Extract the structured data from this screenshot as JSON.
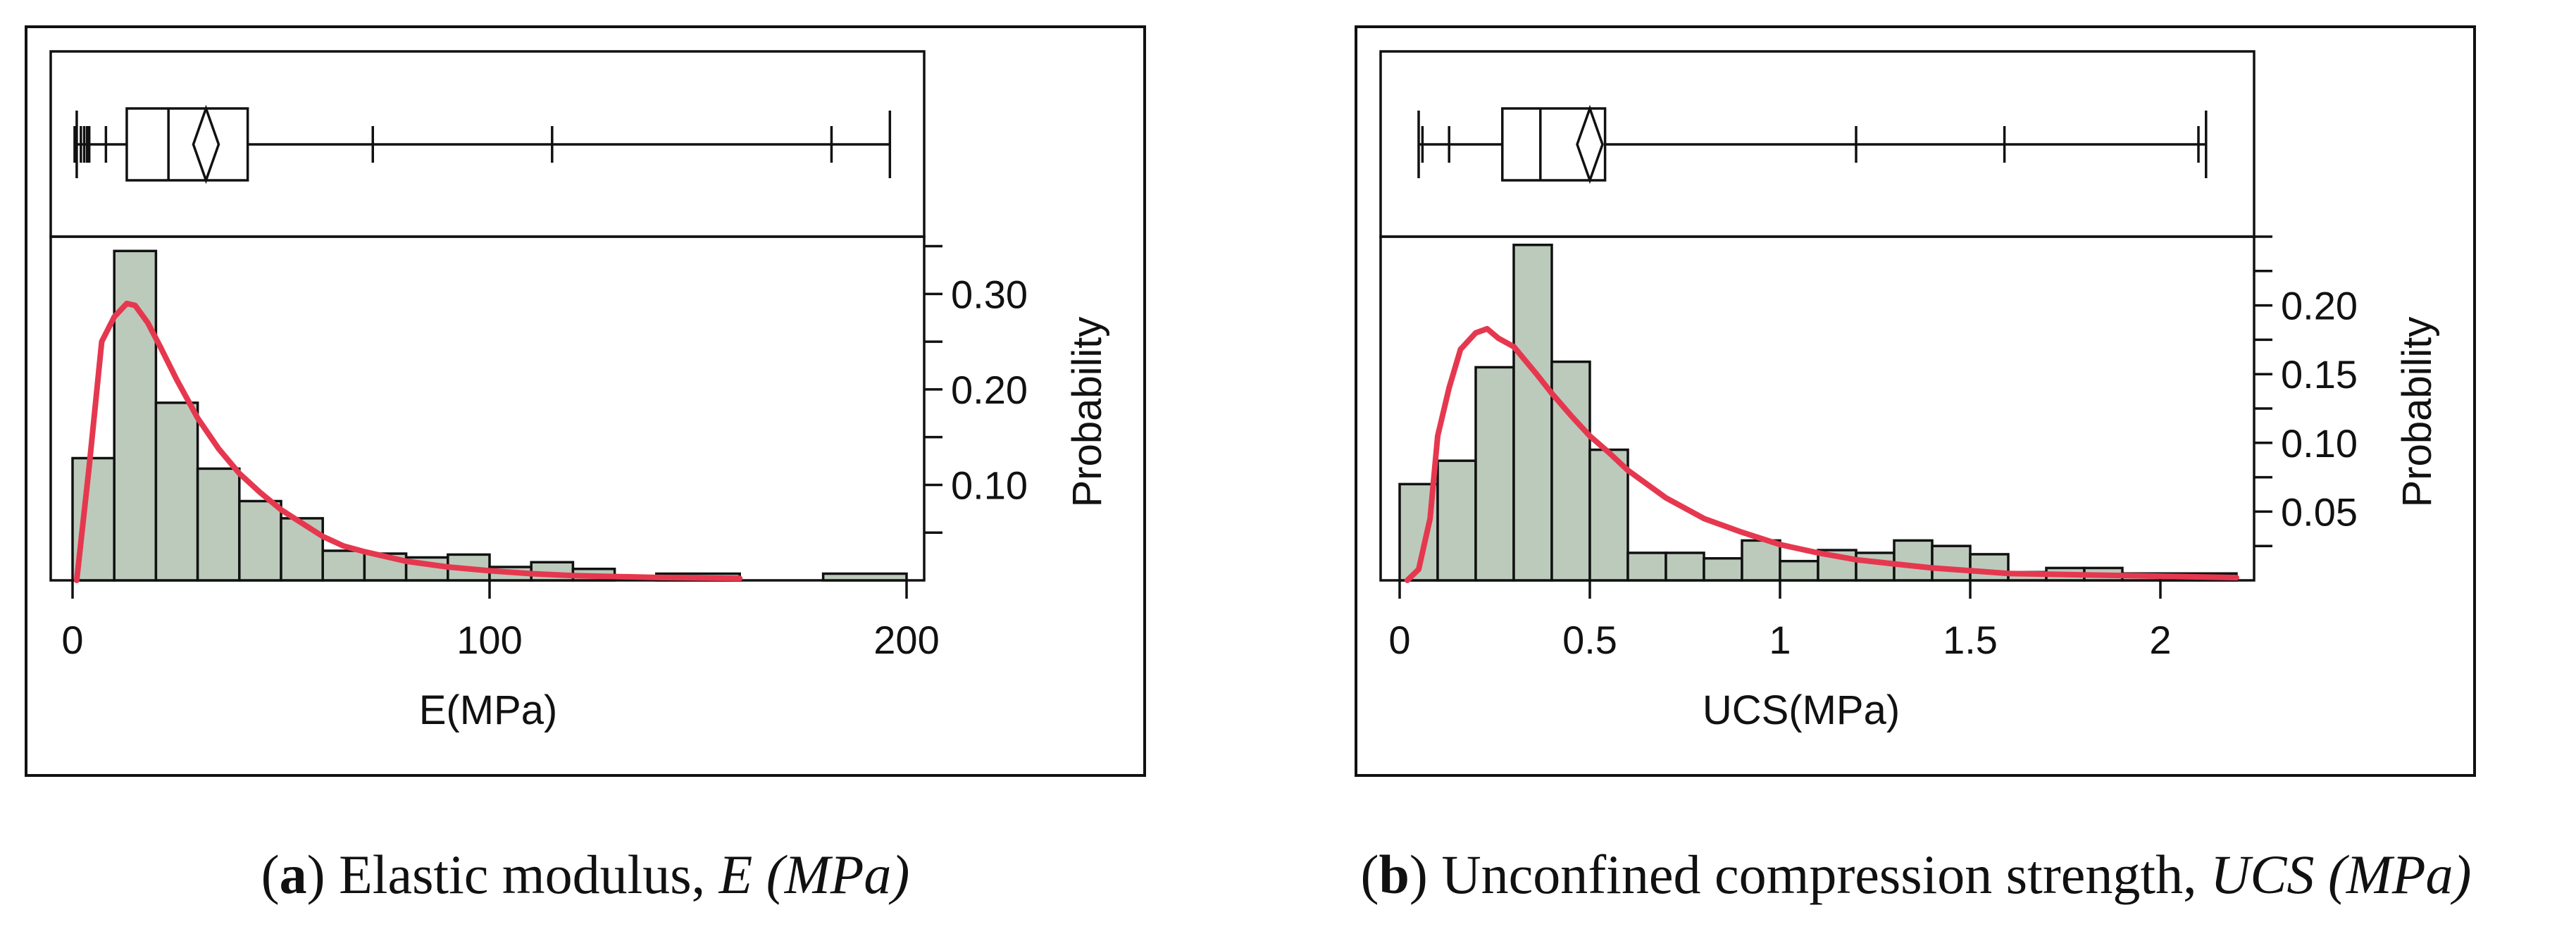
{
  "chart_data": [
    {
      "id": "a",
      "type": "histogram",
      "xlabel": "E(MPa)",
      "ylabel": "Probability",
      "xlim": [
        0,
        200
      ],
      "xticks": [
        0,
        100,
        200
      ],
      "xtick_labels": [
        "0",
        "100",
        "200"
      ],
      "ylim": [
        0,
        0.36
      ],
      "yticks": [
        0.05,
        0.1,
        0.15,
        0.2,
        0.25,
        0.3,
        0.35
      ],
      "ytick_labels": [
        {
          "value": 0.1,
          "label": "0.10"
        },
        {
          "value": 0.2,
          "label": "0.20"
        },
        {
          "value": 0.3,
          "label": "0.30"
        }
      ],
      "bins": [
        {
          "x0": 0,
          "x1": 10,
          "p": 0.128
        },
        {
          "x0": 10,
          "x1": 20,
          "p": 0.345
        },
        {
          "x0": 20,
          "x1": 30,
          "p": 0.186
        },
        {
          "x0": 30,
          "x1": 40,
          "p": 0.117
        },
        {
          "x0": 40,
          "x1": 50,
          "p": 0.083
        },
        {
          "x0": 50,
          "x1": 60,
          "p": 0.065
        },
        {
          "x0": 60,
          "x1": 70,
          "p": 0.031
        },
        {
          "x0": 70,
          "x1": 80,
          "p": 0.028
        },
        {
          "x0": 80,
          "x1": 90,
          "p": 0.024
        },
        {
          "x0": 90,
          "x1": 100,
          "p": 0.027
        },
        {
          "x0": 100,
          "x1": 110,
          "p": 0.014
        },
        {
          "x0": 110,
          "x1": 120,
          "p": 0.019
        },
        {
          "x0": 120,
          "x1": 130,
          "p": 0.012
        },
        {
          "x0": 140,
          "x1": 160,
          "p": 0.007
        },
        {
          "x0": 180,
          "x1": 200,
          "p": 0.007
        }
      ],
      "fit_curve": [
        [
          1,
          0.0
        ],
        [
          4,
          0.12
        ],
        [
          7,
          0.25
        ],
        [
          10,
          0.276
        ],
        [
          13,
          0.29
        ],
        [
          15,
          0.288
        ],
        [
          18,
          0.27
        ],
        [
          21,
          0.245
        ],
        [
          25,
          0.21
        ],
        [
          30,
          0.17
        ],
        [
          35,
          0.138
        ],
        [
          40,
          0.112
        ],
        [
          45,
          0.092
        ],
        [
          50,
          0.074
        ],
        [
          55,
          0.06
        ],
        [
          60,
          0.046
        ],
        [
          65,
          0.036
        ],
        [
          70,
          0.03
        ],
        [
          80,
          0.02
        ],
        [
          90,
          0.014
        ],
        [
          100,
          0.01
        ],
        [
          110,
          0.007
        ],
        [
          120,
          0.005
        ],
        [
          140,
          0.003
        ],
        [
          160,
          0.002
        ]
      ],
      "boxplot": {
        "whisker_low": 1,
        "q1": 13,
        "median": 23,
        "mean": 32,
        "q3": 42,
        "whisker_high": 196,
        "quantile_ticks": [
          0.5,
          2,
          2.8,
          3.5,
          4,
          8,
          72,
          115,
          182
        ]
      },
      "caption": {
        "label": "a",
        "text": " Elastic modulus, ",
        "symbol": "E (MPa)"
      }
    },
    {
      "id": "b",
      "type": "histogram",
      "xlabel": "UCS(MPa)",
      "ylabel": "Probability",
      "xlim": [
        0,
        2.2
      ],
      "xticks": [
        0,
        0.5,
        1,
        1.5,
        2
      ],
      "xtick_labels": [
        "0",
        "0.5",
        "1",
        "1.5",
        "2"
      ],
      "ylim": [
        0,
        0.25
      ],
      "yticks": [
        0.025,
        0.05,
        0.075,
        0.1,
        0.125,
        0.15,
        0.175,
        0.2,
        0.225,
        0.25
      ],
      "ytick_labels": [
        {
          "value": 0.05,
          "label": "0.05"
        },
        {
          "value": 0.1,
          "label": "0.10"
        },
        {
          "value": 0.15,
          "label": "0.15"
        },
        {
          "value": 0.2,
          "label": "0.20"
        }
      ],
      "bins": [
        {
          "x0": 0.0,
          "x1": 0.1,
          "p": 0.07
        },
        {
          "x0": 0.1,
          "x1": 0.2,
          "p": 0.087
        },
        {
          "x0": 0.2,
          "x1": 0.3,
          "p": 0.155
        },
        {
          "x0": 0.3,
          "x1": 0.4,
          "p": 0.244
        },
        {
          "x0": 0.4,
          "x1": 0.5,
          "p": 0.159
        },
        {
          "x0": 0.5,
          "x1": 0.6,
          "p": 0.095
        },
        {
          "x0": 0.6,
          "x1": 0.7,
          "p": 0.02
        },
        {
          "x0": 0.7,
          "x1": 0.8,
          "p": 0.02
        },
        {
          "x0": 0.8,
          "x1": 0.9,
          "p": 0.016
        },
        {
          "x0": 0.9,
          "x1": 1.0,
          "p": 0.029
        },
        {
          "x0": 1.0,
          "x1": 1.1,
          "p": 0.014
        },
        {
          "x0": 1.1,
          "x1": 1.2,
          "p": 0.022
        },
        {
          "x0": 1.2,
          "x1": 1.3,
          "p": 0.02
        },
        {
          "x0": 1.3,
          "x1": 1.4,
          "p": 0.029
        },
        {
          "x0": 1.4,
          "x1": 1.5,
          "p": 0.025
        },
        {
          "x0": 1.5,
          "x1": 1.6,
          "p": 0.019
        },
        {
          "x0": 1.6,
          "x1": 1.7,
          "p": 0.006
        },
        {
          "x0": 1.7,
          "x1": 1.8,
          "p": 0.009
        },
        {
          "x0": 1.8,
          "x1": 1.9,
          "p": 0.009
        },
        {
          "x0": 1.9,
          "x1": 2.0,
          "p": 0.005
        },
        {
          "x0": 2.0,
          "x1": 2.1,
          "p": 0.005
        },
        {
          "x0": 2.1,
          "x1": 2.2,
          "p": 0.005
        }
      ],
      "fit_curve": [
        [
          0.02,
          0.0
        ],
        [
          0.05,
          0.008
        ],
        [
          0.08,
          0.045
        ],
        [
          0.1,
          0.105
        ],
        [
          0.13,
          0.14
        ],
        [
          0.16,
          0.168
        ],
        [
          0.2,
          0.18
        ],
        [
          0.23,
          0.183
        ],
        [
          0.26,
          0.176
        ],
        [
          0.3,
          0.17
        ],
        [
          0.33,
          0.16
        ],
        [
          0.36,
          0.15
        ],
        [
          0.4,
          0.136
        ],
        [
          0.45,
          0.12
        ],
        [
          0.5,
          0.105
        ],
        [
          0.55,
          0.093
        ],
        [
          0.6,
          0.08
        ],
        [
          0.7,
          0.06
        ],
        [
          0.8,
          0.045
        ],
        [
          0.9,
          0.035
        ],
        [
          1.0,
          0.026
        ],
        [
          1.1,
          0.02
        ],
        [
          1.2,
          0.015
        ],
        [
          1.3,
          0.012
        ],
        [
          1.4,
          0.009
        ],
        [
          1.5,
          0.007
        ],
        [
          1.6,
          0.005
        ],
        [
          1.8,
          0.004
        ],
        [
          2.0,
          0.003
        ],
        [
          2.2,
          0.002
        ]
      ],
      "boxplot": {
        "whisker_low": 0.05,
        "q1": 0.27,
        "median": 0.37,
        "mean": 0.5,
        "q3": 0.54,
        "whisker_high": 2.12,
        "quantile_ticks": [
          0.06,
          0.13,
          1.2,
          1.59,
          2.1
        ]
      },
      "caption": {
        "label": "b",
        "text": " Unconfined compression strength, ",
        "symbol": "UCS (MPa)"
      }
    }
  ]
}
